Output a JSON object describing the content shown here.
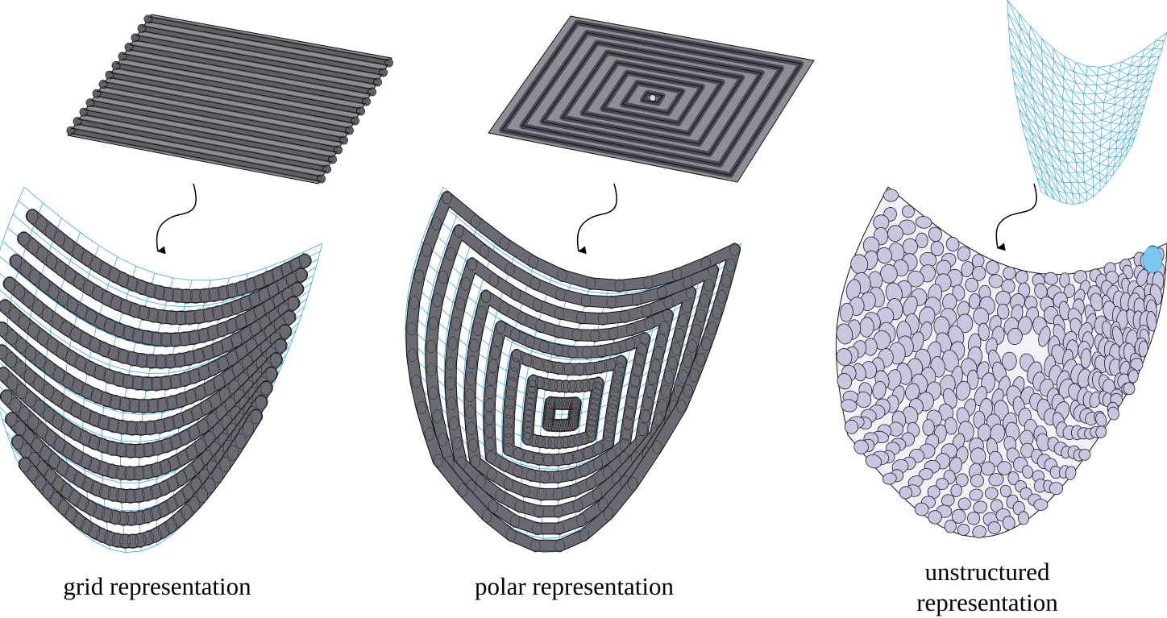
{
  "captions": {
    "grid": "grid representation",
    "polar": "polar representation",
    "unstructured_line1": "unstructured",
    "unstructured_line2": "representation"
  },
  "colors": {
    "mesh": "#39a9e0",
    "mesh_light": "#7cc7ee",
    "stroke": "#111111",
    "flat_fill": "#8e8e96",
    "ellipse_fill": "#c9c6e0"
  },
  "panels": [
    {
      "id": "grid",
      "pattern": "parallel-rows",
      "rows": 13
    },
    {
      "id": "polar",
      "pattern": "concentric-squares",
      "rings": 8
    },
    {
      "id": "unstructured",
      "pattern": "scattered-ellipses"
    }
  ]
}
